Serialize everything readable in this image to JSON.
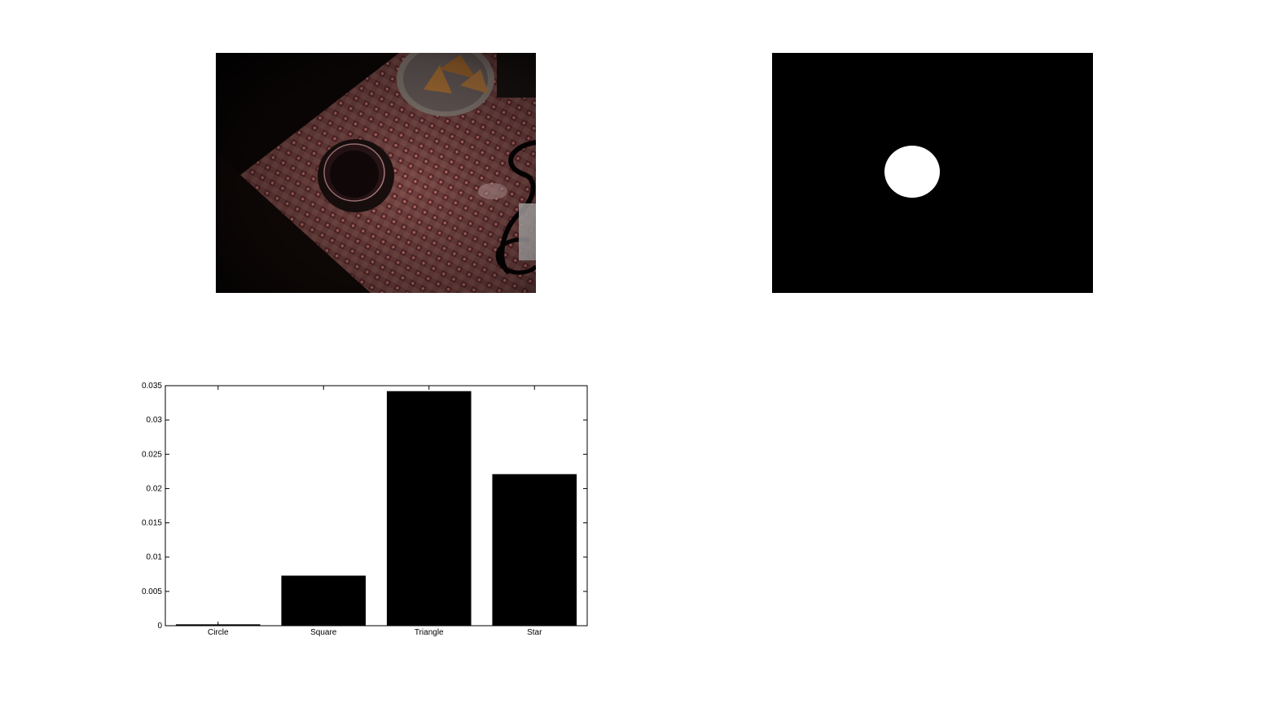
{
  "figure": {
    "photo_panel": {
      "description_icon": "table-photo-icon"
    },
    "mask_panel": {
      "colors": {
        "background": "#000000",
        "blob": "#ffffff"
      }
    }
  },
  "chart_data": {
    "type": "bar",
    "categories": [
      "Circle",
      "Square",
      "Triangle",
      "Star"
    ],
    "values": [
      0.0002,
      0.0073,
      0.0342,
      0.0221
    ],
    "ylim": [
      0,
      0.035
    ],
    "yticks": [
      "0",
      "0.005",
      "0.01",
      "0.015",
      "0.02",
      "0.025",
      "0.03",
      "0.035"
    ],
    "ytick_values": [
      0,
      0.005,
      0.01,
      0.015,
      0.02,
      0.025,
      0.03,
      0.035
    ],
    "bar_color": "#000000",
    "grid": false,
    "title": "",
    "xlabel": "",
    "ylabel": ""
  }
}
